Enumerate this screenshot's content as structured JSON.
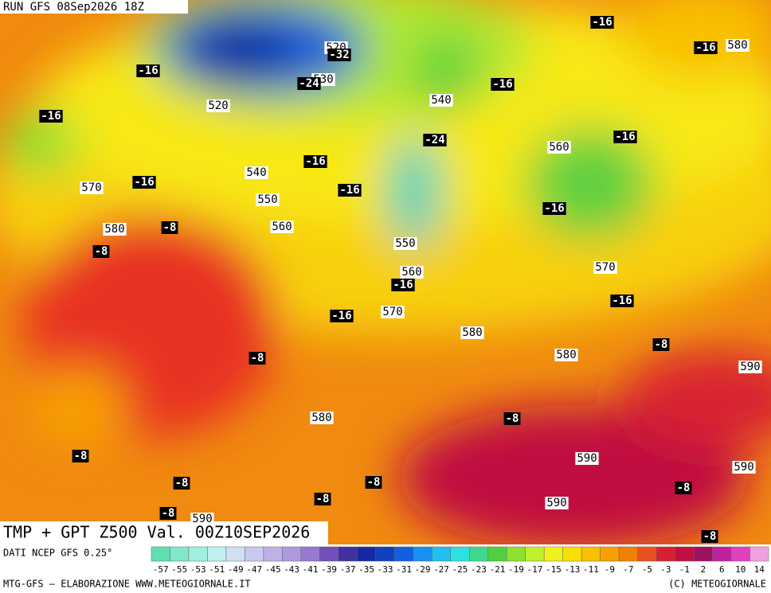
{
  "header": {
    "run": "RUN GFS 08Sep2026 18Z",
    "product": "TMP + GPT Z500 Val. 00Z10SEP2026"
  },
  "height_labels": [
    "520",
    "530",
    "520",
    "540",
    "560",
    "540",
    "570",
    "550",
    "560",
    "580",
    "550",
    "560",
    "570",
    "570",
    "580",
    "580",
    "590",
    "580",
    "590",
    "590",
    "590",
    "580",
    "590"
  ],
  "temperature_labels": [
    "-32",
    "-24",
    "-16",
    "-16",
    "-16",
    "-16",
    "-16",
    "-24",
    "-16",
    "-16",
    "-16",
    "-16",
    "-16",
    "-8",
    "-8",
    "-16",
    "-16",
    "-16",
    "-8",
    "-8",
    "-8",
    "-8",
    "-8",
    "-8",
    "-8",
    "-8",
    "-8",
    "-8"
  ],
  "footer": {
    "source": "DATI NCEP GFS 0.25°",
    "credit": "MTG-GFS – ELABORAZIONE WWW.METEOGIORNALE.IT",
    "copyright": "(C) METEOGIORNALE"
  },
  "colorbar": {
    "labels": [
      "-57",
      "-55",
      "-53",
      "-51",
      "-49",
      "-47",
      "-45",
      "-43",
      "-41",
      "-39",
      "-37",
      "-35",
      "-33",
      "-31",
      "-29",
      "-27",
      "-25",
      "-23",
      "-21",
      "-19",
      "-17",
      "-15",
      "-13",
      "-11",
      "-9",
      "-7",
      "-5",
      "-3",
      "-1",
      "2",
      "6",
      "10",
      "14"
    ],
    "colors": [
      "#5fe0b0",
      "#80e8c8",
      "#a0f0e0",
      "#c0f0f0",
      "#d0e0f0",
      "#c8c8f0",
      "#c0b0e8",
      "#b098e0",
      "#9878d0",
      "#7050b8",
      "#4030a0",
      "#1828a0",
      "#1040c0",
      "#1060e0",
      "#1890f0",
      "#20c0f0",
      "#30e0e0",
      "#40d890",
      "#50d040",
      "#90e030",
      "#c0f030",
      "#f0f020",
      "#f8e000",
      "#f8c000",
      "#f8a000",
      "#f08000",
      "#e85020",
      "#d82030",
      "#c01040",
      "#a01060",
      "#c020a0",
      "#e040c0",
      "#f0a0e0"
    ]
  }
}
